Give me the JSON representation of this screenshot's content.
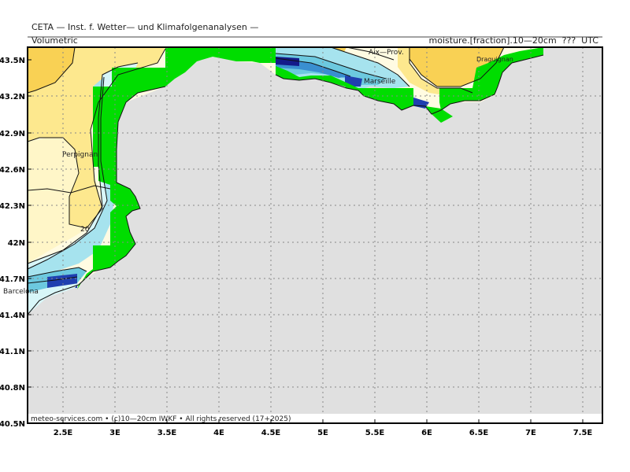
{
  "header": {
    "title": "CETA — Inst. f. Wetter— und Klimafolgenanalysen —",
    "subtitle_left": "Volumetric",
    "subtitle_right": "moisture.[fraction].10—20cm  ???  UTC"
  },
  "axes": {
    "lat_labels": [
      "43.5N",
      "43.2N",
      "42.9N",
      "42.6N",
      "42.3N",
      "42N",
      "41.7N",
      "41.4N",
      "41.1N",
      "40.8N",
      "40.5N"
    ],
    "lon_labels": [
      "2.5E",
      "3E",
      "3.5E",
      "4E",
      "4.5E",
      "5E",
      "5.5E",
      "6E",
      "6.5E",
      "7E",
      "7.5E"
    ]
  },
  "cities": [
    {
      "name": "Aix—Prov.",
      "id": "aix"
    },
    {
      "name": "Marseille",
      "id": "marseille"
    },
    {
      "name": "Draguignan",
      "id": "draguignan"
    },
    {
      "name": "Perpignan",
      "id": "perpignan"
    },
    {
      "name": "Barcelona",
      "id": "barcelona"
    }
  ],
  "contour_label": "20",
  "footer": "meteo-services.com • (c)10—20cm IWKF • All rights reserved (17+2025)",
  "colors": {
    "sea": "#e0e0e0",
    "mask": "#00dd00",
    "dry_orange": "#f9d154",
    "dry_yellow": "#fde88e",
    "pale_yellow": "#fff6c8",
    "cream": "#fffbe2",
    "pale_cyan": "#d8f6f8",
    "light_cyan": "#a6e3ee",
    "cyan": "#6cc9df",
    "blue": "#3a8fd0",
    "dark_blue": "#1f3fb0",
    "navy": "#141a8a"
  }
}
